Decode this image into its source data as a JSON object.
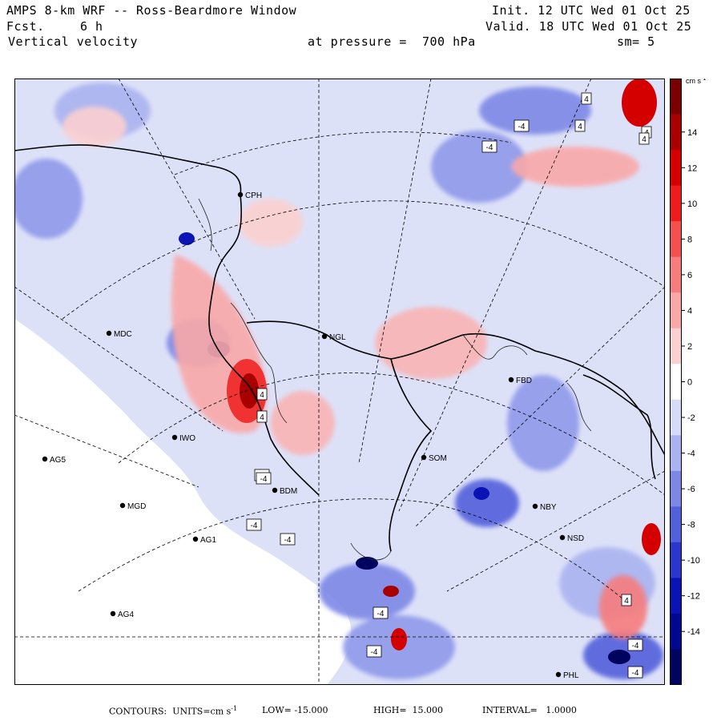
{
  "header": {
    "model": "AMPS 8-km WRF -- Ross-Beardmore Window",
    "init": "Init. 12 UTC Wed 01 Oct 25",
    "fcst_label": "Fcst.",
    "fcst_value": "6 h",
    "valid": "Valid. 18 UTC Wed 01 Oct 25",
    "field": "Vertical velocity",
    "pressure": "at pressure =  700 hPa",
    "smooth": "sm= 5"
  },
  "colorbar": {
    "units": "cm s",
    "units_exp": "-1",
    "ticks": [
      "14",
      "12",
      "10",
      "8",
      "6",
      "4",
      "2",
      "0",
      "-2",
      "-4",
      "-6",
      "-8",
      "-10",
      "-12",
      "-14"
    ],
    "colors": [
      "#7a0000",
      "#a80000",
      "#d40000",
      "#ee1c1c",
      "#f45050",
      "#f77d7d",
      "#f9a8a8",
      "#fbd0d0",
      "#ffffff",
      "#d6dbf7",
      "#aab3f0",
      "#7d88e6",
      "#5260dc",
      "#2a36cc",
      "#0a14b4",
      "#000890",
      "#00045e"
    ]
  },
  "stations": [
    {
      "label": "CPH",
      "dx": 300,
      "dy": 243
    },
    {
      "label": "NGL",
      "dx": 405,
      "dy": 420
    },
    {
      "label": "MDC",
      "dx": 136,
      "dy": 416
    },
    {
      "label": "FBD",
      "dx": 638,
      "dy": 474
    },
    {
      "label": "IWO",
      "dx": 218,
      "dy": 546
    },
    {
      "label": "AG5",
      "dx": 56,
      "dy": 573
    },
    {
      "label": "SOM",
      "dx": 529,
      "dy": 571
    },
    {
      "label": "BDM",
      "dx": 343,
      "dy": 612
    },
    {
      "label": "MGD",
      "dx": 153,
      "dy": 631
    },
    {
      "label": "NBY",
      "dx": 668,
      "dy": 632
    },
    {
      "label": "AG1",
      "dx": 244,
      "dy": 673
    },
    {
      "label": "NSD",
      "dx": 702,
      "dy": 671
    },
    {
      "label": "AG4",
      "dx": 141,
      "dy": 766
    },
    {
      "label": "PHL",
      "dx": 697,
      "dy": 842
    }
  ],
  "contour_labels": [
    "4",
    "-4",
    "4",
    "-4",
    "-4",
    "4",
    "4",
    "4",
    "-4",
    "-4",
    "-4",
    "-4",
    "4",
    "-4",
    "-4",
    "-4",
    "4"
  ],
  "footer": {
    "contours": "CONTOURS:  UNITS=cm s",
    "units_exp": "-1",
    "low": "LOW= -15.000",
    "high": "HIGH=  15.000",
    "interval": "INTERVAL=   1.0000"
  }
}
